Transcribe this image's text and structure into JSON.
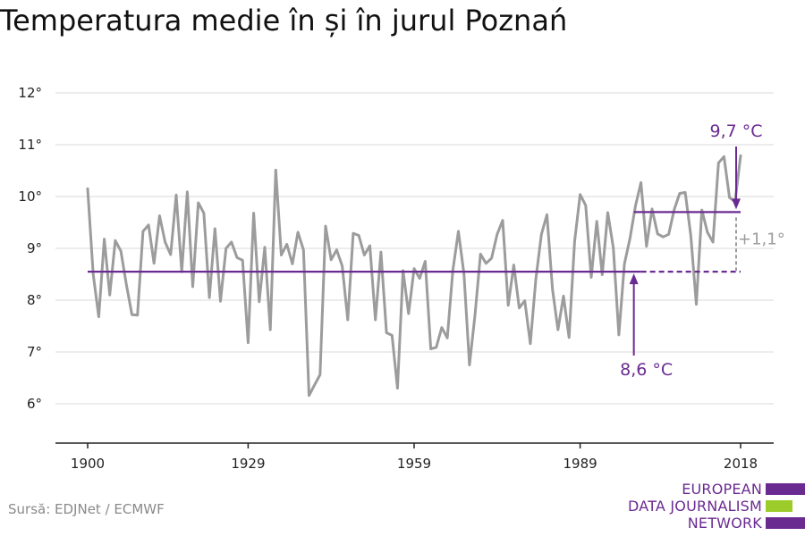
{
  "title": "Temperatura medie în și în jurul Poznań",
  "source": "Sursă: EDJNet / ECMWF",
  "logo": {
    "lines": [
      "EUROPEAN",
      "DATA JOURNALISM",
      "NETWORK"
    ],
    "colors": [
      "#6a2b91",
      "#9ccc2a",
      "#6a2b91"
    ]
  },
  "colors": {
    "series": "#9c9c9c",
    "accent": "#6a2b91",
    "difference": "#9c9c9c",
    "grid": "#d9d9d9",
    "axis": "#222222"
  },
  "chart_data": {
    "type": "line",
    "title": "Temperatura medie în și în jurul Poznań",
    "xlabel": "",
    "ylabel": "",
    "xlim": [
      1900,
      2018
    ],
    "ylim": [
      5.2,
      12
    ],
    "x_ticks": [
      1900,
      1929,
      1959,
      1989,
      2018
    ],
    "y_ticks": [
      6,
      7,
      8,
      9,
      10,
      11,
      12
    ],
    "y_tick_labels": [
      "6°",
      "7°",
      "8°",
      "9°",
      "10°",
      "11°",
      "12°"
    ],
    "grid": true,
    "series": [
      {
        "x_start": 1900,
        "values": [
          10.15,
          8.5,
          7.68,
          9.18,
          8.1,
          9.15,
          8.95,
          8.3,
          7.72,
          7.71,
          9.33,
          9.45,
          8.71,
          9.63,
          9.12,
          8.88,
          10.03,
          8.55,
          10.09,
          8.26,
          9.88,
          9.68,
          8.05,
          9.38,
          7.98,
          9.0,
          9.12,
          8.82,
          8.77,
          7.18,
          9.68,
          7.97,
          9.02,
          7.43,
          10.51,
          8.87,
          9.08,
          8.7,
          9.31,
          8.97,
          6.16,
          6.36,
          6.56,
          9.43,
          8.78,
          8.97,
          8.66,
          7.62,
          9.29,
          9.25,
          8.87,
          9.05,
          7.62,
          8.93,
          7.37,
          7.32,
          6.3,
          8.57,
          7.74,
          8.61,
          8.42,
          8.75,
          7.06,
          7.09,
          7.47,
          7.27,
          8.58,
          9.33,
          8.51,
          6.75,
          7.72,
          8.89,
          8.71,
          8.81,
          9.27,
          9.54,
          7.9,
          8.68,
          7.85,
          7.99,
          7.16,
          8.41,
          9.27,
          9.65,
          8.21,
          7.43,
          8.08,
          7.28,
          9.13,
          10.04,
          9.83,
          8.44,
          9.52,
          8.49,
          9.69,
          9.01,
          7.33,
          8.7,
          9.19,
          9.82,
          10.27,
          9.04,
          9.76,
          9.28,
          9.22,
          9.27,
          9.75,
          10.06,
          10.08,
          9.25,
          7.92,
          9.74,
          9.31,
          9.12,
          10.65,
          10.77,
          9.98,
          9.9,
          10.79
        ]
      }
    ],
    "annotations": [
      {
        "type": "hline",
        "label": "8,6 °C",
        "value": 8.55,
        "x_from": 1900,
        "x_to": 2000,
        "dashed_to": 2018,
        "arrow_at": 2000
      },
      {
        "type": "hline",
        "label": "9,7 °C",
        "value": 9.7,
        "x_from": 2000,
        "x_to": 2018,
        "arrow_at": 2018
      },
      {
        "type": "difference",
        "label": "+1,1°",
        "at": 2018,
        "from": 8.55,
        "to": 9.7
      }
    ]
  }
}
